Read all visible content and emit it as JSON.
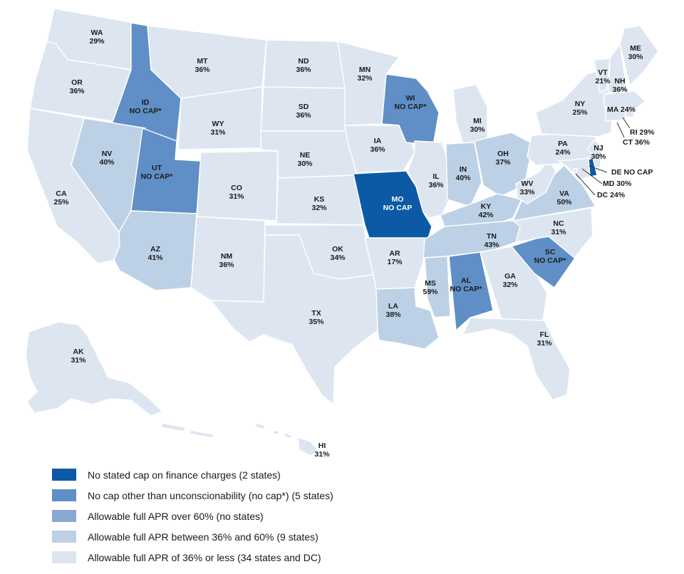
{
  "colors": {
    "no_cap": "#0c5aa6",
    "no_cap_star": "#5f8fc6",
    "over_60": "#8aa8d4",
    "between_36_60": "#bdd1e6",
    "under_36": "#dde6f0"
  },
  "states": [
    {
      "abbr": "WA",
      "value": "29%",
      "category": "under_36"
    },
    {
      "abbr": "OR",
      "value": "36%",
      "category": "under_36"
    },
    {
      "abbr": "CA",
      "value": "25%",
      "category": "under_36"
    },
    {
      "abbr": "ID",
      "value": "NO CAP*",
      "category": "no_cap_star"
    },
    {
      "abbr": "NV",
      "value": "40%",
      "category": "between_36_60"
    },
    {
      "abbr": "UT",
      "value": "NO CAP*",
      "category": "no_cap_star"
    },
    {
      "abbr": "AZ",
      "value": "41%",
      "category": "between_36_60"
    },
    {
      "abbr": "MT",
      "value": "36%",
      "category": "under_36"
    },
    {
      "abbr": "WY",
      "value": "31%",
      "category": "under_36"
    },
    {
      "abbr": "CO",
      "value": "31%",
      "category": "under_36"
    },
    {
      "abbr": "NM",
      "value": "36%",
      "category": "under_36"
    },
    {
      "abbr": "ND",
      "value": "36%",
      "category": "under_36"
    },
    {
      "abbr": "SD",
      "value": "36%",
      "category": "under_36"
    },
    {
      "abbr": "NE",
      "value": "30%",
      "category": "under_36"
    },
    {
      "abbr": "KS",
      "value": "32%",
      "category": "under_36"
    },
    {
      "abbr": "OK",
      "value": "34%",
      "category": "under_36"
    },
    {
      "abbr": "TX",
      "value": "35%",
      "category": "under_36"
    },
    {
      "abbr": "MN",
      "value": "32%",
      "category": "under_36"
    },
    {
      "abbr": "IA",
      "value": "36%",
      "category": "under_36"
    },
    {
      "abbr": "MO",
      "value": "NO CAP",
      "category": "no_cap"
    },
    {
      "abbr": "AR",
      "value": "17%",
      "category": "under_36"
    },
    {
      "abbr": "LA",
      "value": "38%",
      "category": "between_36_60"
    },
    {
      "abbr": "WI",
      "value": "NO CAP*",
      "category": "no_cap_star"
    },
    {
      "abbr": "IL",
      "value": "36%",
      "category": "under_36"
    },
    {
      "abbr": "MI",
      "value": "30%",
      "category": "under_36"
    },
    {
      "abbr": "IN",
      "value": "40%",
      "category": "between_36_60"
    },
    {
      "abbr": "OH",
      "value": "37%",
      "category": "between_36_60"
    },
    {
      "abbr": "KY",
      "value": "42%",
      "category": "between_36_60"
    },
    {
      "abbr": "TN",
      "value": "43%",
      "category": "between_36_60"
    },
    {
      "abbr": "MS",
      "value": "59%",
      "category": "between_36_60"
    },
    {
      "abbr": "AL",
      "value": "NO CAP*",
      "category": "no_cap_star"
    },
    {
      "abbr": "GA",
      "value": "32%",
      "category": "under_36"
    },
    {
      "abbr": "FL",
      "value": "31%",
      "category": "under_36"
    },
    {
      "abbr": "SC",
      "value": "NO CAP*",
      "category": "no_cap_star"
    },
    {
      "abbr": "NC",
      "value": "31%",
      "category": "under_36"
    },
    {
      "abbr": "VA",
      "value": "50%",
      "category": "between_36_60"
    },
    {
      "abbr": "WV",
      "value": "33%",
      "category": "under_36"
    },
    {
      "abbr": "PA",
      "value": "24%",
      "category": "under_36"
    },
    {
      "abbr": "NY",
      "value": "25%",
      "category": "under_36"
    },
    {
      "abbr": "VT",
      "value": "21%",
      "category": "under_36"
    },
    {
      "abbr": "NH",
      "value": "36%",
      "category": "under_36"
    },
    {
      "abbr": "ME",
      "value": "30%",
      "category": "under_36"
    },
    {
      "abbr": "MA",
      "value": "24%",
      "category": "under_36"
    },
    {
      "abbr": "RI",
      "value": "29%",
      "category": "under_36"
    },
    {
      "abbr": "CT",
      "value": "36%",
      "category": "under_36"
    },
    {
      "abbr": "NJ",
      "value": "30%",
      "category": "under_36"
    },
    {
      "abbr": "DE",
      "value": "NO CAP",
      "category": "no_cap"
    },
    {
      "abbr": "MD",
      "value": "30%",
      "category": "under_36"
    },
    {
      "abbr": "DC",
      "value": "24%",
      "category": "under_36"
    },
    {
      "abbr": "AK",
      "value": "31%",
      "category": "under_36"
    },
    {
      "abbr": "HI",
      "value": "31%",
      "category": "under_36"
    }
  ],
  "legend": [
    {
      "category": "no_cap",
      "text": "No stated cap on finance charges (2 states)"
    },
    {
      "category": "no_cap_star",
      "text": "No cap other than unconscionability (no cap*) (5 states)"
    },
    {
      "category": "over_60",
      "text": "Allowable full APR over 60% (no states)"
    },
    {
      "category": "between_36_60",
      "text": "Allowable full APR between 36% and 60% (9 states)"
    },
    {
      "category": "under_36",
      "text": "Allowable full APR of 36% or less (34 states and DC)"
    }
  ]
}
